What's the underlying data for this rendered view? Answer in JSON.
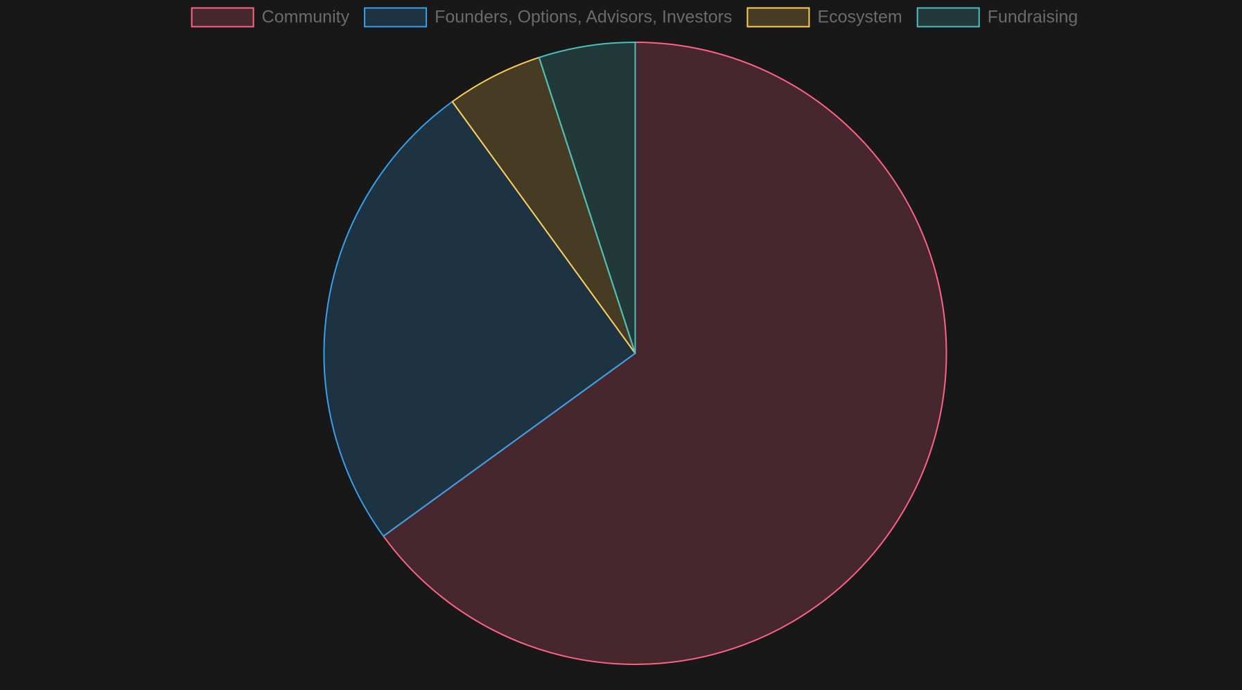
{
  "chart_data": {
    "type": "pie",
    "categories": [
      "Community",
      "Founders, Options, Advisors, Investors",
      "Ecosystem",
      "Fundraising"
    ],
    "values": [
      65,
      25,
      5,
      5
    ],
    "colors": [
      "#ff6384",
      "#36a2eb",
      "#ffcd56",
      "#4bc0c0"
    ],
    "legend": "top"
  }
}
